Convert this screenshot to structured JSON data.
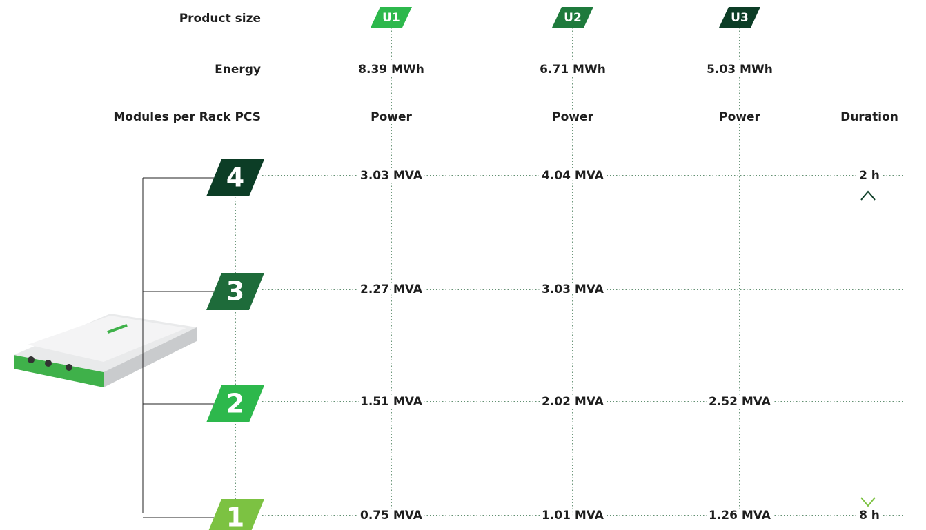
{
  "labels": {
    "product_size": "Product size",
    "energy": "Energy",
    "modules": "Modules per Rack PCS"
  },
  "products": [
    {
      "size": "U1",
      "energy": "8.39 MWh",
      "power_header": "Power"
    },
    {
      "size": "U2",
      "energy": "6.71 MWh",
      "power_header": "Power"
    },
    {
      "size": "U3",
      "energy": "5.03 MWh",
      "power_header": "Power"
    }
  ],
  "duration_header": "Duration",
  "rows": [
    {
      "modules": "4",
      "powers": [
        "3.03 MVA",
        "4.04 MVA",
        null
      ],
      "duration": "2 h"
    },
    {
      "modules": "3",
      "powers": [
        "2.27 MVA",
        "3.03 MVA",
        null
      ]
    },
    {
      "modules": "2",
      "powers": [
        "1.51 MVA",
        "2.02 MVA",
        "2.52 MVA"
      ]
    },
    {
      "modules": "1",
      "powers": [
        "0.75 MVA",
        "1.01 MVA",
        "1.26 MVA"
      ],
      "duration": "8 h"
    }
  ]
}
